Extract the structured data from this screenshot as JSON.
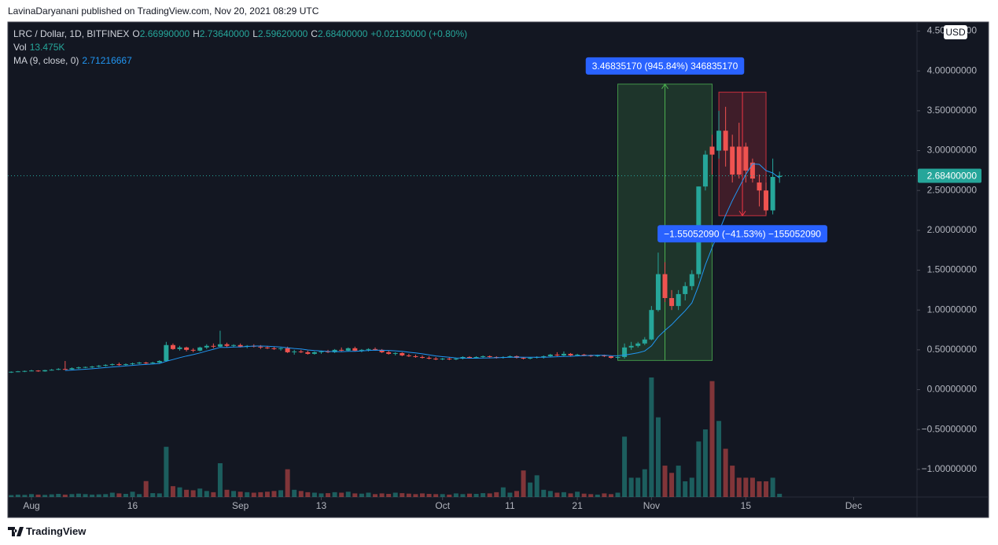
{
  "header": "LavinaDaryanani published on TradingView.com, Nov 20, 2021 08:29 UTC",
  "footer": "TradingView",
  "chart_data": {
    "type": "candlestick",
    "legend": {
      "symbol": "LRC / Dollar, 1D, BITFINEX",
      "fields": [
        {
          "key": "O",
          "value": "2.66990000"
        },
        {
          "key": "H",
          "value": "2.73640000"
        },
        {
          "key": "L",
          "value": "2.59620000"
        },
        {
          "key": "C",
          "value": "2.68400000"
        }
      ],
      "change": "+0.02130000 (+0.80%)",
      "volume_label": "Vol",
      "volume_value": "13.475K",
      "ma_label": "MA (9, close, 0)",
      "ma_value": "2.71216667"
    },
    "currency": "USD",
    "colors": {
      "up": "#26a69a",
      "down": "#ef5350",
      "ma": "#2196f3"
    },
    "ylim": [
      -1.347,
      4.614
    ],
    "yticks": [
      {
        "value": 4.5,
        "label": "4.50000000"
      },
      {
        "value": 4.0,
        "label": "4.00000000"
      },
      {
        "value": 3.5,
        "label": "3.50000000"
      },
      {
        "value": 3.0,
        "label": "3.00000000"
      },
      {
        "value": 2.5,
        "label": "2.50000000"
      },
      {
        "value": 2.0,
        "label": "2.00000000"
      },
      {
        "value": 1.5,
        "label": "1.50000000"
      },
      {
        "value": 1.0,
        "label": "1.00000000"
      },
      {
        "value": 0.5,
        "label": "0.50000000"
      },
      {
        "value": 0,
        "label": "0.00000000"
      },
      {
        "value": -0.5,
        "label": "−0.50000000"
      },
      {
        "value": -1.0,
        "label": "−1.00000000"
      }
    ],
    "xlim": [
      0.5,
      135.4
    ],
    "xticks": [
      {
        "value": 4,
        "label": "Aug"
      },
      {
        "value": 19,
        "label": "16"
      },
      {
        "value": 35,
        "label": "Sep"
      },
      {
        "value": 47,
        "label": "13"
      },
      {
        "value": 65,
        "label": "Oct"
      },
      {
        "value": 75,
        "label": "11"
      },
      {
        "value": 85,
        "label": "21"
      },
      {
        "value": 96,
        "label": "Nov"
      },
      {
        "value": 110,
        "label": "15"
      },
      {
        "value": 126,
        "label": "Dec"
      }
    ],
    "last_price": {
      "value": 2.684,
      "label": "2.68400000"
    },
    "x": [
      1,
      2,
      3,
      4,
      5,
      6,
      7,
      8,
      9,
      10,
      11,
      12,
      13,
      14,
      15,
      16,
      17,
      18,
      19,
      20,
      21,
      22,
      23,
      24,
      25,
      26,
      27,
      28,
      29,
      30,
      31,
      32,
      33,
      34,
      35,
      36,
      37,
      38,
      39,
      40,
      41,
      42,
      43,
      44,
      45,
      46,
      47,
      48,
      49,
      50,
      51,
      52,
      53,
      54,
      55,
      56,
      57,
      58,
      59,
      60,
      61,
      62,
      63,
      64,
      65,
      66,
      67,
      68,
      69,
      70,
      71,
      72,
      73,
      74,
      75,
      76,
      77,
      78,
      79,
      80,
      81,
      82,
      83,
      84,
      85,
      86,
      87,
      88,
      89,
      90,
      91,
      92,
      93,
      94,
      95,
      96,
      97,
      98,
      99,
      100,
      101,
      102,
      103,
      104,
      105,
      106,
      107,
      108,
      109,
      110,
      111,
      112,
      113,
      114,
      115
    ],
    "ohlc": [
      [
        0.22,
        0.23,
        0.21,
        0.225
      ],
      [
        0.225,
        0.235,
        0.22,
        0.23
      ],
      [
        0.23,
        0.24,
        0.22,
        0.235
      ],
      [
        0.235,
        0.25,
        0.23,
        0.24
      ],
      [
        0.24,
        0.245,
        0.225,
        0.23
      ],
      [
        0.23,
        0.25,
        0.225,
        0.245
      ],
      [
        0.245,
        0.26,
        0.24,
        0.25
      ],
      [
        0.25,
        0.27,
        0.245,
        0.26
      ],
      [
        0.26,
        0.36,
        0.25,
        0.255
      ],
      [
        0.255,
        0.28,
        0.25,
        0.27
      ],
      [
        0.27,
        0.29,
        0.26,
        0.28
      ],
      [
        0.28,
        0.29,
        0.27,
        0.285
      ],
      [
        0.285,
        0.3,
        0.27,
        0.29
      ],
      [
        0.29,
        0.31,
        0.28,
        0.3
      ],
      [
        0.3,
        0.32,
        0.29,
        0.31
      ],
      [
        0.31,
        0.33,
        0.3,
        0.32
      ],
      [
        0.32,
        0.34,
        0.3,
        0.31
      ],
      [
        0.31,
        0.33,
        0.3,
        0.32
      ],
      [
        0.32,
        0.34,
        0.31,
        0.33
      ],
      [
        0.33,
        0.35,
        0.32,
        0.34
      ],
      [
        0.34,
        0.35,
        0.32,
        0.33
      ],
      [
        0.33,
        0.35,
        0.32,
        0.34
      ],
      [
        0.34,
        0.37,
        0.33,
        0.36
      ],
      [
        0.36,
        0.6,
        0.35,
        0.56
      ],
      [
        0.56,
        0.58,
        0.5,
        0.51
      ],
      [
        0.51,
        0.55,
        0.49,
        0.53
      ],
      [
        0.53,
        0.54,
        0.48,
        0.5
      ],
      [
        0.5,
        0.52,
        0.47,
        0.49
      ],
      [
        0.49,
        0.54,
        0.48,
        0.53
      ],
      [
        0.53,
        0.57,
        0.51,
        0.55
      ],
      [
        0.55,
        0.58,
        0.52,
        0.54
      ],
      [
        0.54,
        0.74,
        0.53,
        0.57
      ],
      [
        0.57,
        0.59,
        0.53,
        0.55
      ],
      [
        0.55,
        0.57,
        0.53,
        0.56
      ],
      [
        0.56,
        0.58,
        0.53,
        0.54
      ],
      [
        0.54,
        0.56,
        0.52,
        0.55
      ],
      [
        0.55,
        0.57,
        0.53,
        0.54
      ],
      [
        0.54,
        0.56,
        0.51,
        0.53
      ],
      [
        0.53,
        0.55,
        0.51,
        0.52
      ],
      [
        0.52,
        0.54,
        0.5,
        0.51
      ],
      [
        0.51,
        0.53,
        0.49,
        0.52
      ],
      [
        0.52,
        0.54,
        0.46,
        0.47
      ],
      [
        0.47,
        0.5,
        0.44,
        0.48
      ],
      [
        0.48,
        0.5,
        0.46,
        0.47
      ],
      [
        0.47,
        0.49,
        0.44,
        0.45
      ],
      [
        0.45,
        0.48,
        0.44,
        0.47
      ],
      [
        0.47,
        0.49,
        0.45,
        0.48
      ],
      [
        0.48,
        0.5,
        0.46,
        0.47
      ],
      [
        0.47,
        0.51,
        0.46,
        0.5
      ],
      [
        0.5,
        0.53,
        0.48,
        0.49
      ],
      [
        0.49,
        0.53,
        0.48,
        0.52
      ],
      [
        0.52,
        0.54,
        0.48,
        0.49
      ],
      [
        0.49,
        0.51,
        0.47,
        0.5
      ],
      [
        0.5,
        0.52,
        0.48,
        0.51
      ],
      [
        0.51,
        0.53,
        0.49,
        0.5
      ],
      [
        0.5,
        0.51,
        0.46,
        0.47
      ],
      [
        0.47,
        0.49,
        0.44,
        0.45
      ],
      [
        0.45,
        0.47,
        0.43,
        0.46
      ],
      [
        0.46,
        0.47,
        0.42,
        0.43
      ],
      [
        0.43,
        0.45,
        0.41,
        0.42
      ],
      [
        0.42,
        0.44,
        0.4,
        0.41
      ],
      [
        0.41,
        0.43,
        0.39,
        0.4
      ],
      [
        0.4,
        0.42,
        0.38,
        0.39
      ],
      [
        0.39,
        0.41,
        0.37,
        0.38
      ],
      [
        0.38,
        0.4,
        0.37,
        0.39
      ],
      [
        0.39,
        0.41,
        0.37,
        0.38
      ],
      [
        0.38,
        0.4,
        0.37,
        0.39
      ],
      [
        0.39,
        0.42,
        0.38,
        0.41
      ],
      [
        0.41,
        0.42,
        0.39,
        0.4
      ],
      [
        0.4,
        0.42,
        0.39,
        0.41
      ],
      [
        0.41,
        0.43,
        0.4,
        0.42
      ],
      [
        0.42,
        0.43,
        0.4,
        0.41
      ],
      [
        0.41,
        0.42,
        0.39,
        0.4
      ],
      [
        0.4,
        0.42,
        0.39,
        0.41
      ],
      [
        0.41,
        0.43,
        0.4,
        0.42
      ],
      [
        0.42,
        0.43,
        0.39,
        0.4
      ],
      [
        0.4,
        0.41,
        0.38,
        0.39
      ],
      [
        0.39,
        0.41,
        0.38,
        0.4
      ],
      [
        0.4,
        0.42,
        0.39,
        0.41
      ],
      [
        0.41,
        0.43,
        0.39,
        0.42
      ],
      [
        0.42,
        0.45,
        0.41,
        0.44
      ],
      [
        0.44,
        0.47,
        0.42,
        0.43
      ],
      [
        0.43,
        0.48,
        0.42,
        0.45
      ],
      [
        0.45,
        0.46,
        0.42,
        0.43
      ],
      [
        0.43,
        0.45,
        0.42,
        0.44
      ],
      [
        0.44,
        0.45,
        0.42,
        0.43
      ],
      [
        0.43,
        0.44,
        0.41,
        0.42
      ],
      [
        0.42,
        0.44,
        0.41,
        0.43
      ],
      [
        0.43,
        0.44,
        0.41,
        0.42
      ],
      [
        0.42,
        0.43,
        0.39,
        0.4
      ],
      [
        0.4,
        0.42,
        0.38,
        0.41
      ],
      [
        0.41,
        0.58,
        0.39,
        0.53
      ],
      [
        0.53,
        0.6,
        0.5,
        0.55
      ],
      [
        0.55,
        0.6,
        0.53,
        0.58
      ],
      [
        0.58,
        0.66,
        0.56,
        0.63
      ],
      [
        0.63,
        1.05,
        0.62,
        1.0
      ],
      [
        1.0,
        1.72,
        0.98,
        1.45
      ],
      [
        1.45,
        1.6,
        1.1,
        1.15
      ],
      [
        1.15,
        1.25,
        1.0,
        1.05
      ],
      [
        1.05,
        1.25,
        1.0,
        1.2
      ],
      [
        1.2,
        1.35,
        1.12,
        1.3
      ],
      [
        1.3,
        1.5,
        1.25,
        1.45
      ],
      [
        1.45,
        2.55,
        1.4,
        2.55
      ],
      [
        2.55,
        3.0,
        2.5,
        2.95
      ],
      [
        3.05,
        3.2,
        2.7,
        2.95
      ],
      [
        3.0,
        3.5,
        2.9,
        3.25
      ],
      [
        3.25,
        3.55,
        2.8,
        3.0
      ],
      [
        3.05,
        3.2,
        2.6,
        2.7
      ],
      [
        3.05,
        3.35,
        2.65,
        2.7
      ],
      [
        3.05,
        3.1,
        2.6,
        2.75
      ],
      [
        2.85,
        2.9,
        2.6,
        2.65
      ],
      [
        2.6,
        2.7,
        2.3,
        2.5
      ],
      [
        2.5,
        2.6,
        2.2,
        2.25
      ],
      [
        2.25,
        2.9,
        2.2,
        2.67
      ],
      [
        2.6699,
        2.7364,
        2.5962,
        2.684
      ]
    ],
    "volume": [
      8,
      10,
      9,
      12,
      10,
      9,
      11,
      13,
      10,
      12,
      14,
      12,
      10,
      11,
      12,
      18,
      15,
      13,
      22,
      12,
      66,
      16,
      15,
      208,
      45,
      40,
      30,
      28,
      35,
      25,
      20,
      140,
      30,
      25,
      22,
      20,
      18,
      20,
      22,
      25,
      28,
      115,
      30,
      25,
      20,
      18,
      15,
      16,
      20,
      18,
      22,
      15,
      14,
      18,
      12,
      15,
      13,
      18,
      16,
      14,
      12,
      15,
      13,
      12,
      12,
      10,
      15,
      12,
      14,
      13,
      16,
      15,
      20,
      40,
      18,
      25,
      110,
      60,
      90,
      30,
      25,
      18,
      20,
      15,
      22,
      14,
      12,
      10,
      15,
      12,
      18,
      250,
      80,
      80,
      115,
      495,
      330,
      130,
      100,
      130,
      65,
      80,
      230,
      280,
      480,
      315,
      200,
      130,
      80,
      80,
      80,
      65,
      65,
      80,
      13.475
    ],
    "measures": [
      {
        "label": "3.46835170 (945.84%) 346835170",
        "x": [
          91,
          105
        ],
        "y": [
          0.3667,
          3.835
        ],
        "color": "#4caf50"
      },
      {
        "label": "−1.55052090 (−41.53%) −155052090",
        "x": [
          106,
          113
        ],
        "y": [
          3.734,
          2.1835
        ],
        "color": "#f23645"
      }
    ]
  }
}
